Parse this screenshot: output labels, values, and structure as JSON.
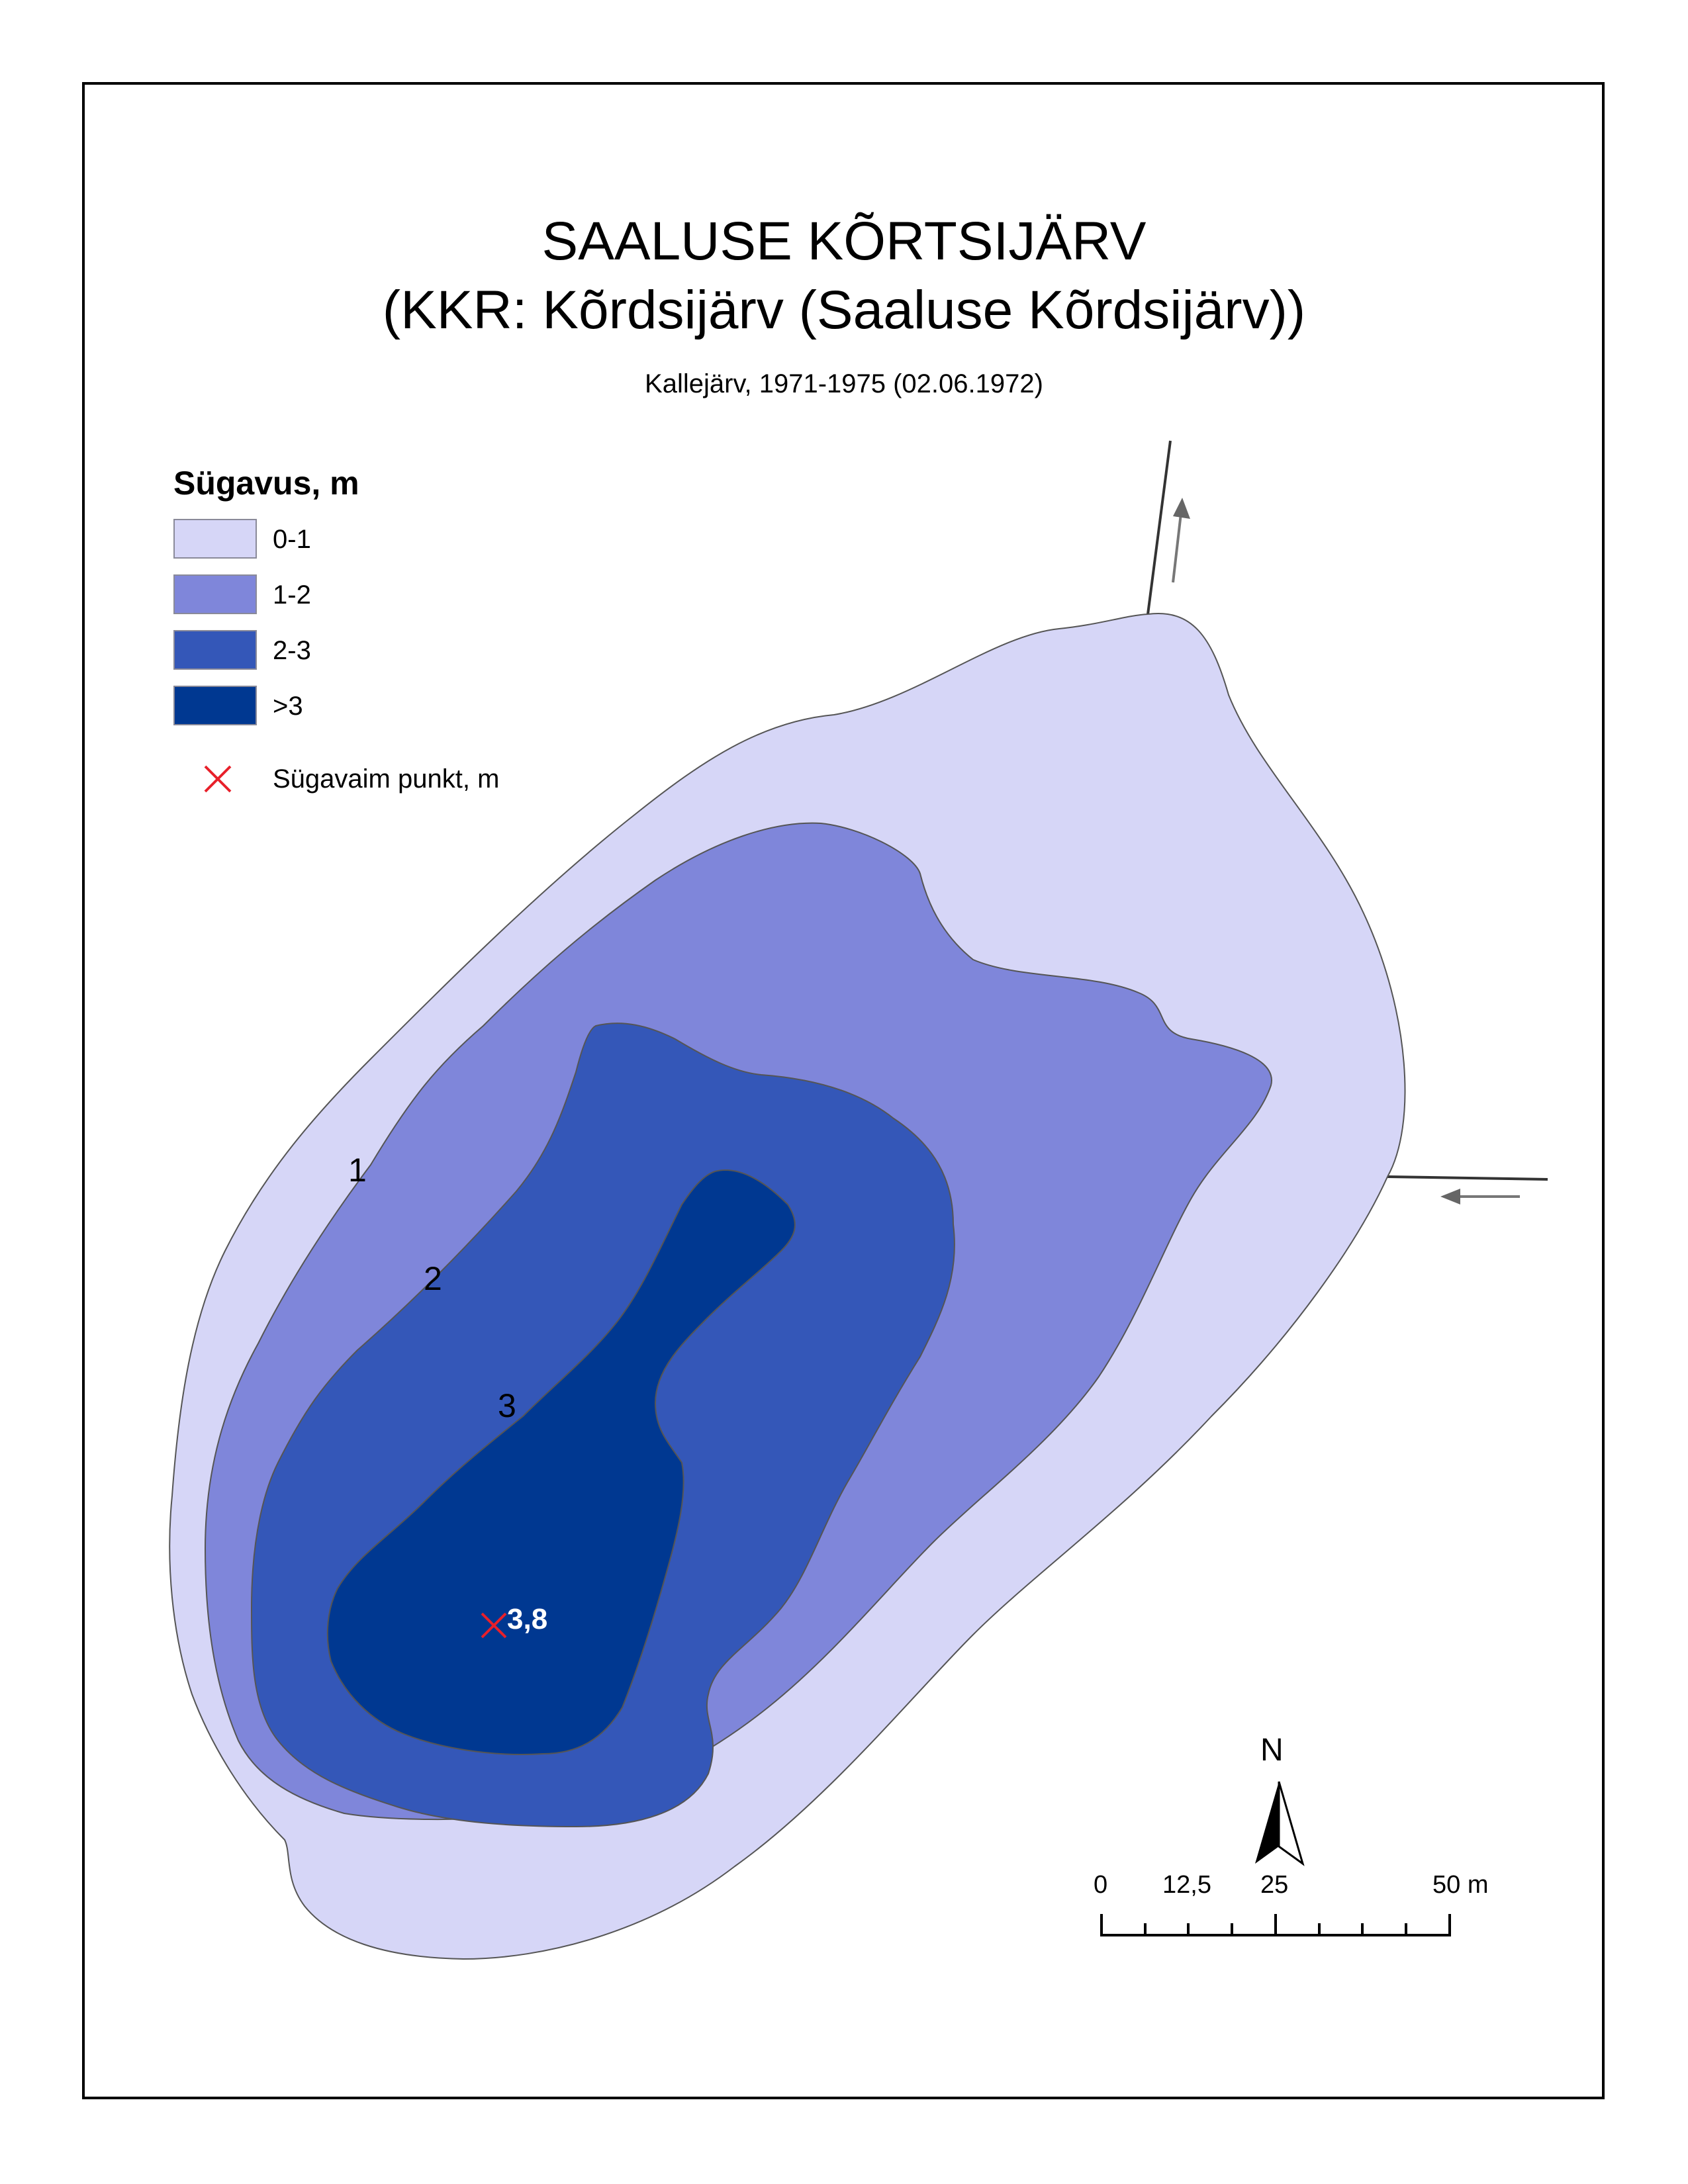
{
  "map": {
    "title_line1": "SAALUSE KÕRTSIJÄRV",
    "title_line2": "(KKR: Kõrdsijärv (Saaluse Kõrdsijärv))",
    "subtitle": "Kallejärv, 1971-1975 (02.06.1972)"
  },
  "legend": {
    "title": "Sügavus, m",
    "items": [
      {
        "label": "0-1",
        "color": "#d6d6f7"
      },
      {
        "label": "1-2",
        "color": "#7f86da"
      },
      {
        "label": "2-3",
        "color": "#3457b8"
      },
      {
        "label": ">3",
        "color": "#003891"
      }
    ],
    "deepest_point_label": "Sügavaim punkt, m",
    "deepest_point_color": "#e8202a"
  },
  "contour_labels": [
    "1",
    "2",
    "3"
  ],
  "deepest_point": {
    "value": "3,8"
  },
  "north_arrow": {
    "label": "N"
  },
  "scale_bar": {
    "labels": [
      "0",
      "12,5",
      "25",
      "50 m"
    ]
  }
}
